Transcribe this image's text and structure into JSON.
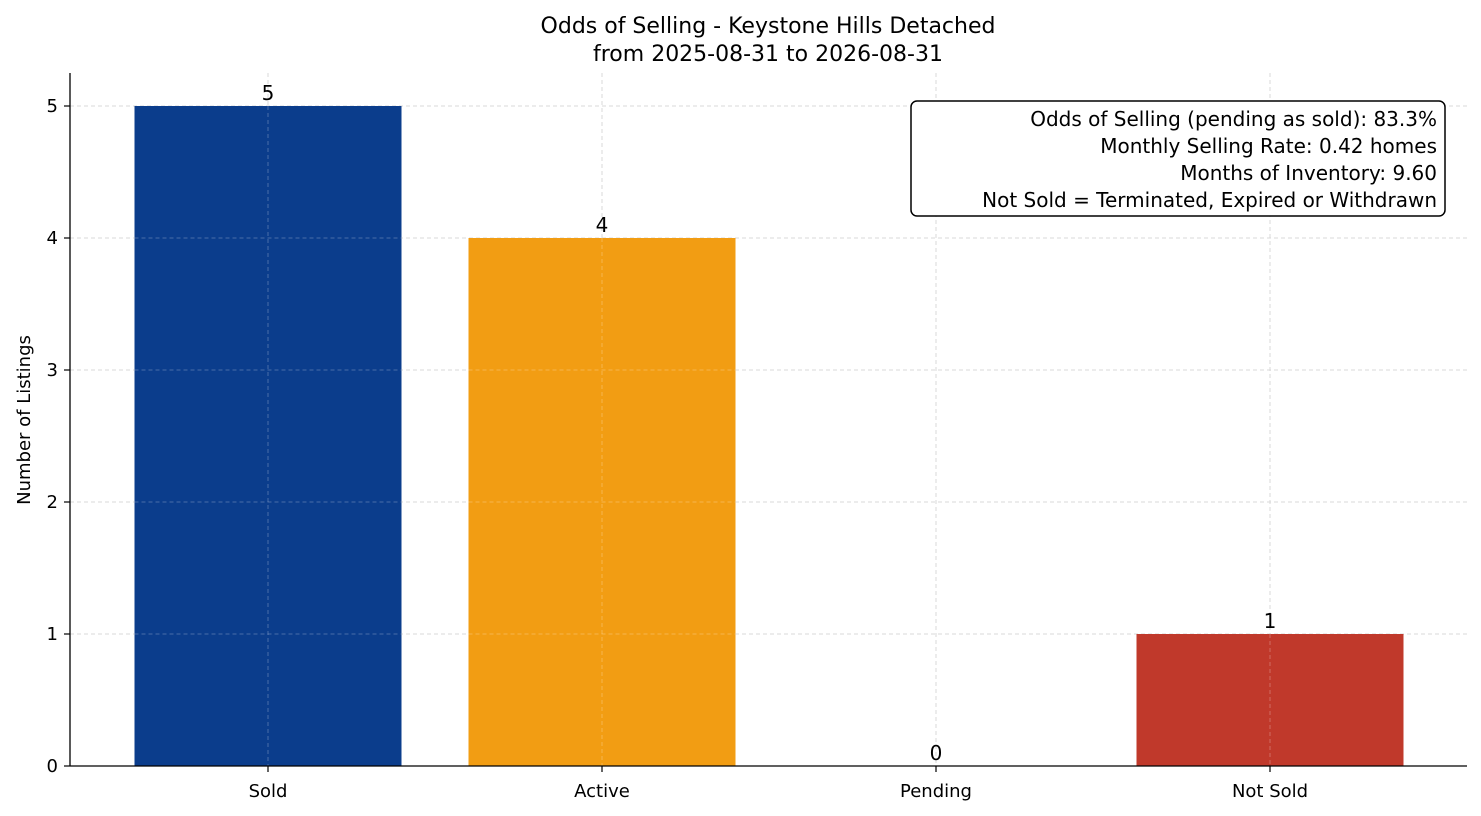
{
  "chart_data": {
    "type": "bar",
    "title": "Odds of Selling - Keystone Hills Detached",
    "subtitle": "from 2025-08-31 to 2026-08-31",
    "xlabel": "",
    "ylabel": "Number of Listings",
    "categories": [
      "Sold",
      "Active",
      "Pending",
      "Not Sold"
    ],
    "values": [
      5,
      4,
      0,
      1
    ],
    "colors": [
      "#0b3d8c",
      "#f29d13",
      "#2e8b57",
      "#c0392b"
    ],
    "ylim": [
      0,
      5.25
    ],
    "yticks": [
      0,
      1,
      2,
      3,
      4,
      5
    ],
    "grid": true,
    "annotation": {
      "placement": "top-right",
      "lines": [
        "Odds of Selling (pending as sold): 83.3%",
        "Monthly Selling Rate: 0.42 homes",
        "Months of Inventory: 9.60",
        "Not Sold = Terminated, Expired or Withdrawn"
      ]
    }
  }
}
